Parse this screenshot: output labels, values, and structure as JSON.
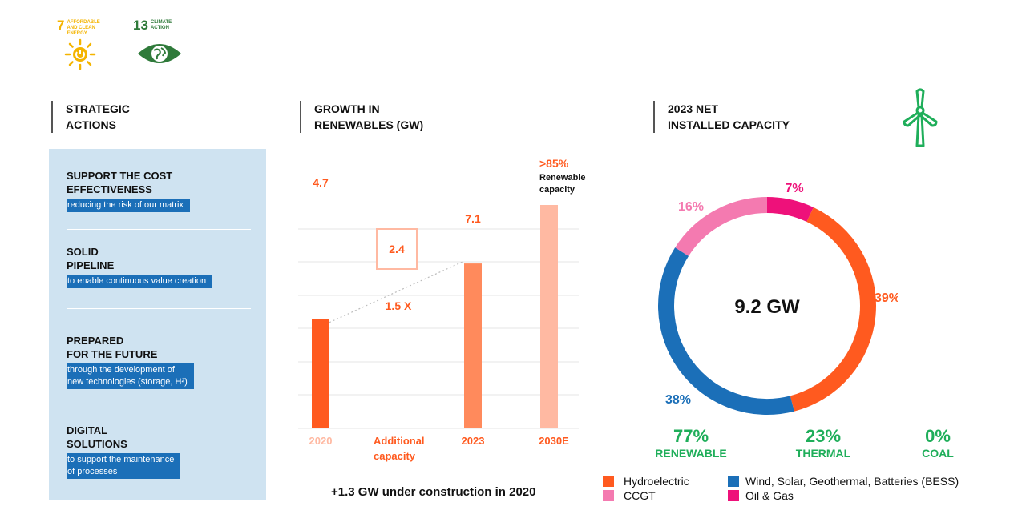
{
  "sdg": [
    {
      "number": "7",
      "text": "AFFORDABLE AND CLEAN ENERGY",
      "color": "#f4b400",
      "icon": "sun-power-icon"
    },
    {
      "number": "13",
      "text": "CLIMATE ACTION",
      "color": "#2f7a3a",
      "icon": "eye-globe-icon"
    }
  ],
  "sections": {
    "strategic": [
      "STRATEGIC",
      "ACTIONS"
    ],
    "growth": [
      "GROWTH IN",
      "RENEWABLES (GW)"
    ],
    "capacity": [
      "2023 NET",
      "INSTALLED CAPACITY"
    ]
  },
  "strategic_actions": [
    {
      "title_lines": [
        "SUPPORT THE COST",
        "EFFECTIVENESS"
      ],
      "subtitle": "reducing the risk of our matrix"
    },
    {
      "title_lines": [
        "SOLID",
        "PIPELINE"
      ],
      "subtitle": "to enable continuous value creation"
    },
    {
      "title_lines": [
        "PREPARED",
        "FOR THE FUTURE"
      ],
      "subtitle": "through the development of\nnew technologies (storage, H²)"
    },
    {
      "title_lines": [
        "DIGITAL",
        "SOLUTIONS"
      ],
      "subtitle": "to support the maintenance\nof processes"
    }
  ],
  "bar_footnote": "+1.3 GW under construction in 2020",
  "colors": {
    "orange": "#ff5a1f",
    "light_orange": "#ff8a5c",
    "pale_orange": "#ffb9a2",
    "pink": "#f47ab0",
    "magenta": "#ee117a",
    "blue": "#1b6fb8",
    "green": "#1fae5a",
    "panel": "#cfe3f1"
  },
  "chart_data": [
    {
      "type": "bar",
      "title": "GROWTH IN RENEWABLES (GW)",
      "categories": [
        "2020",
        "Additional capacity",
        "2023",
        "2030E"
      ],
      "values": [
        4.7,
        2.4,
        7.1,
        null
      ],
      "value_labels": [
        "4.7",
        "2.4",
        "7.1",
        ""
      ],
      "annotations": {
        "multiplier": "1.5 X",
        "target_pct": ">85%",
        "target_text_lines": [
          "Renewable",
          "capacity"
        ]
      },
      "ylim": [
        0,
        9
      ]
    },
    {
      "type": "pie",
      "style": "donut",
      "title": "2023 NET INSTALLED CAPACITY",
      "center_label": "9.2 GW",
      "slices": [
        {
          "name": "Oil & Gas",
          "value": 7,
          "label": "7%",
          "color": "#ee117a"
        },
        {
          "name": "Hydroelectric",
          "value": 39,
          "label": "39%",
          "color": "#ff5a1f"
        },
        {
          "name": "Wind, Solar, Geothermal, Batteries (BESS)",
          "value": 38,
          "label": "38%",
          "color": "#1b6fb8"
        },
        {
          "name": "CCGT",
          "value": 16,
          "label": "16%",
          "color": "#f47ab0"
        }
      ],
      "legend": [
        {
          "label": "Hydroelectric",
          "color": "#ff5a1f"
        },
        {
          "label": "Wind, Solar, Geothermal, Batteries (BESS)",
          "color": "#1b6fb8"
        },
        {
          "label": "CCGT",
          "color": "#f47ab0"
        },
        {
          "label": "Oil & Gas",
          "color": "#ee117a"
        }
      ]
    }
  ],
  "shares": [
    {
      "value": "77%",
      "label": "RENEWABLE"
    },
    {
      "value": "23%",
      "label": "THERMAL"
    },
    {
      "value": "0%",
      "label": "COAL"
    }
  ]
}
